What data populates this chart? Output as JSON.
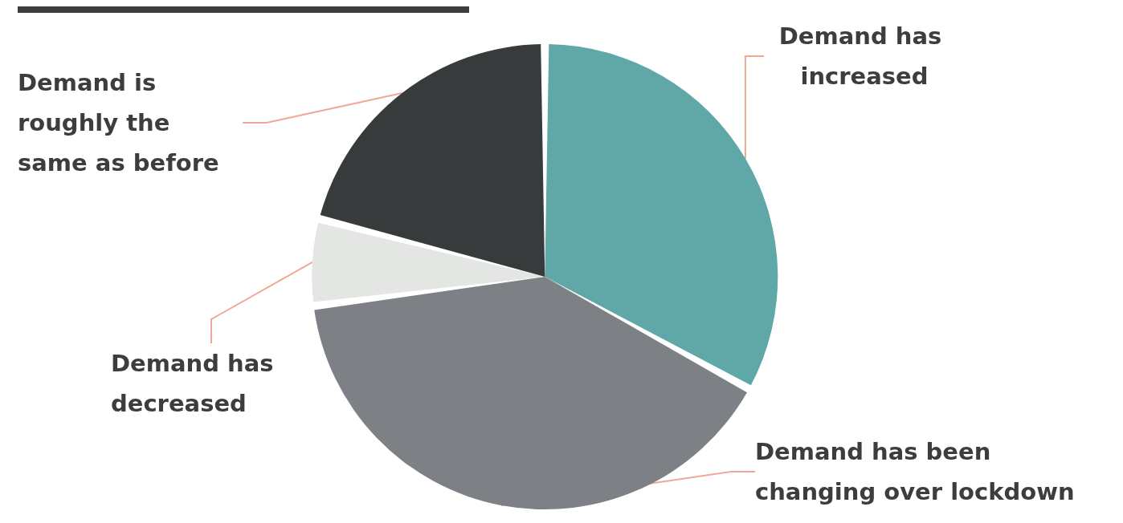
{
  "chart_data": {
    "type": "pie",
    "categories": [
      "Demand has increased",
      "Demand has been changing over lockdown",
      "Demand has decreased",
      "Demand is roughly the same as before"
    ],
    "values": [
      33,
      40,
      6,
      21
    ],
    "colors": [
      "#5fa8a7",
      "#7d8185",
      "#e3e6e3",
      "#373b3c"
    ]
  }
}
